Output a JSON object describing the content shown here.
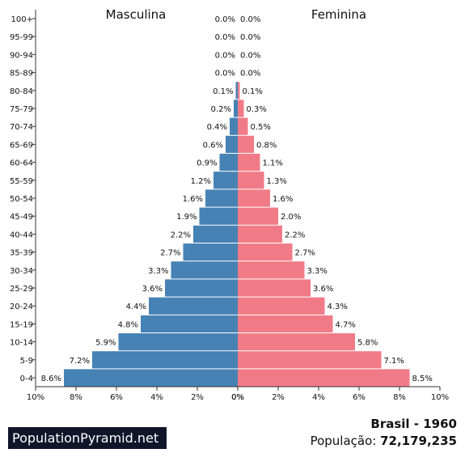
{
  "chart_data": {
    "type": "bar",
    "orientation": "horizontal-pyramid",
    "categories": [
      "0-4",
      "5-9",
      "10-14",
      "15-19",
      "20-24",
      "25-29",
      "30-34",
      "35-39",
      "40-44",
      "45-49",
      "50-54",
      "55-59",
      "60-64",
      "65-69",
      "70-74",
      "75-79",
      "80-84",
      "85-89",
      "90-94",
      "95-99",
      "100+"
    ],
    "series": [
      {
        "name": "Masculina",
        "color": "#4682b4",
        "values": [
          8.6,
          7.2,
          5.9,
          4.8,
          4.4,
          3.6,
          3.3,
          2.7,
          2.2,
          1.9,
          1.6,
          1.2,
          0.9,
          0.6,
          0.4,
          0.2,
          0.1,
          0.0,
          0.0,
          0.0,
          0.0
        ],
        "labels": [
          "8.6%",
          "7.2%",
          "5.9%",
          "4.8%",
          "4.4%",
          "3.6%",
          "3.3%",
          "2.7%",
          "2.2%",
          "1.9%",
          "1.6%",
          "1.2%",
          "0.9%",
          "0.6%",
          "0.4%",
          "0.2%",
          "0.1%",
          "0.0%",
          "0.0%",
          "0.0%",
          "0.0%"
        ]
      },
      {
        "name": "Feminina",
        "color": "#f07b87",
        "values": [
          8.5,
          7.1,
          5.8,
          4.7,
          4.3,
          3.6,
          3.3,
          2.7,
          2.2,
          2.0,
          1.6,
          1.3,
          1.1,
          0.8,
          0.5,
          0.3,
          0.1,
          0.0,
          0.0,
          0.0,
          0.0
        ],
        "labels": [
          "8.5%",
          "7.1%",
          "5.8%",
          "4.7%",
          "4.3%",
          "3.6%",
          "3.3%",
          "2.7%",
          "2.2%",
          "2.0%",
          "1.6%",
          "1.3%",
          "1.1%",
          "0.8%",
          "0.5%",
          "0.3%",
          "0.1%",
          "0.0%",
          "0.0%",
          "0.0%",
          "0.0%"
        ]
      }
    ],
    "xlim": [
      0,
      10
    ],
    "xticks_left": [
      "10%",
      "8%",
      "6%",
      "4%",
      "2%",
      "0%"
    ],
    "xticks_right": [
      "0%",
      "2%",
      "4%",
      "6%",
      "8%",
      "10%"
    ],
    "grid": false
  },
  "footer": {
    "brand": "PopulationPyramid.net",
    "country_year": "Brasil - 1960",
    "population_label": "População:",
    "population_value": "72,179,235"
  }
}
